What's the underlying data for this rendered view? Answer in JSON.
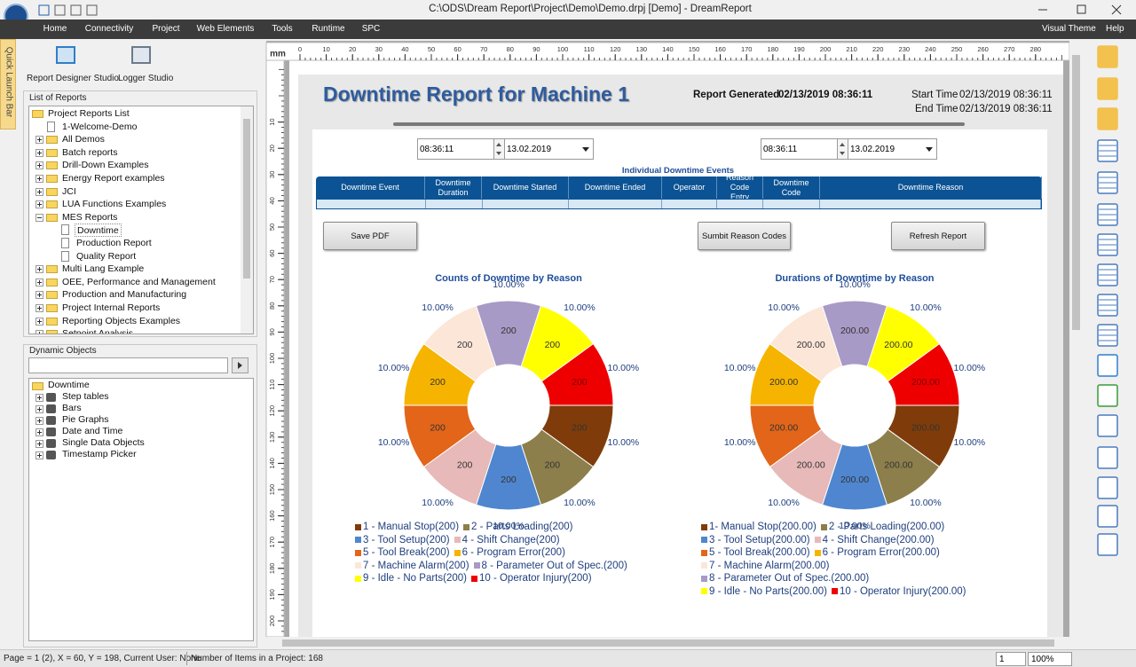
{
  "window": {
    "title": "C:\\ODS\\Dream Report\\Project\\Demo\\Demo.drpj [Demo]  - DreamReport"
  },
  "menu": {
    "items": [
      "Home",
      "Connectivity",
      "Project",
      "Web Elements",
      "Tools",
      "Runtime",
      "SPC"
    ],
    "visual_theme": "Visual Theme",
    "help": "Help"
  },
  "quick_launch": "Quick Launch Bar",
  "studios": [
    "Report Designer Studio",
    "Logger Studio"
  ],
  "reports_panel": {
    "title": "List of Reports",
    "tree": {
      "label": "Project Reports List",
      "children": [
        {
          "label": "1-Welcome-Demo"
        },
        {
          "label": "All Demos",
          "children": []
        },
        {
          "label": "Batch reports",
          "children": []
        },
        {
          "label": "Drill-Down Examples",
          "children": []
        },
        {
          "label": "Energy Report examples",
          "children": []
        },
        {
          "label": "JCI",
          "children": []
        },
        {
          "label": "LUA Functions Examples",
          "children": []
        },
        {
          "label": "MES Reports",
          "children": [
            {
              "label": "Downtime"
            },
            {
              "label": "Production Report"
            },
            {
              "label": "Quality Report"
            }
          ]
        },
        {
          "label": "Multi Lang Example",
          "children": []
        },
        {
          "label": "OEE, Performance and Management",
          "children": []
        },
        {
          "label": "Production and Manufacturing",
          "children": []
        },
        {
          "label": "Project Internal Reports",
          "children": []
        },
        {
          "label": "Reporting Objects Examples",
          "children": []
        },
        {
          "label": "Setpoint Analysis",
          "children": []
        }
      ]
    }
  },
  "dynamic_panel": {
    "title": "Dynamic Objects",
    "tree": {
      "label": "Downtime",
      "children": [
        {
          "label": "Step tables",
          "children": []
        },
        {
          "label": "Bars",
          "children": []
        },
        {
          "label": "Pie Graphs",
          "children": []
        },
        {
          "label": "Date and Time",
          "children": []
        },
        {
          "label": "Single Data Objects",
          "children": []
        },
        {
          "label": "Timestamp Picker",
          "children": []
        }
      ]
    }
  },
  "ruler": {
    "unit": "mm",
    "top": [
      0,
      10,
      20,
      30,
      40,
      50,
      60,
      70,
      80,
      90,
      100,
      110,
      120,
      130,
      140,
      150,
      160,
      170,
      180,
      190,
      200,
      210,
      220,
      230,
      240,
      250,
      260,
      270,
      280
    ],
    "left": [
      10,
      20,
      30,
      40,
      50,
      60,
      70,
      80,
      90,
      100,
      110,
      120,
      130,
      140,
      150,
      160,
      170,
      180,
      190,
      200
    ]
  },
  "report": {
    "title": "Downtime Report for Machine 1",
    "generated_label": "Report Generated",
    "generated": "02/13/2019 08:36:11",
    "start_label": "Start Time",
    "start": "02/13/2019 08:36:11",
    "end_label": "End Time",
    "end": "02/13/2019 08:36:11",
    "pickers": [
      {
        "time": "08:36:11",
        "date": "13.02.2019"
      },
      {
        "time": "08:36:11",
        "date": "13.02.2019"
      }
    ],
    "table": {
      "title": "Individual Downtime Events",
      "headers": [
        "Downtime Event",
        "Downtime Duration",
        "Downtime Started",
        "Downtime Ended",
        "Operator",
        "Reason Code Entry",
        "Downtime Code",
        "Downtime Reason"
      ]
    },
    "buttons": [
      "Save PDF",
      "Sumbit Reason Codes",
      "Refresh Report"
    ]
  },
  "chart_data": [
    {
      "type": "pie",
      "donut": true,
      "title": "Counts of Downtime by Reason",
      "categories": [
        "1 - Manual Stop(200)",
        "2 - Parts Loading(200)",
        "3 - Tool Setup(200)",
        "4 - Shift Change(200)",
        "5 - Tool Break(200)",
        "6 - Program Error(200)",
        "7 - Machine Alarm(200)",
        "8 - Parameter Out of Spec.(200)",
        "9 - Idle - No Parts(200)",
        "10 - Operator Injury(200)"
      ],
      "values": [
        200,
        200,
        200,
        200,
        200,
        200,
        200,
        200,
        200,
        200
      ],
      "percent_labels": [
        "10.00%",
        "10.00%",
        "10.00%",
        "10.00%",
        "10.00%",
        "10.00%",
        "10.00%",
        "10.00%",
        "10.00%",
        "10.00%"
      ],
      "colors": [
        "#7f3c0a",
        "#8c7f4c",
        "#4f86cf",
        "#e7b9b9",
        "#e2651a",
        "#f6b400",
        "#fce6d8",
        "#a89ac6",
        "#ffff00",
        "#ee0000"
      ]
    },
    {
      "type": "pie",
      "donut": true,
      "title": "Durations of Downtime by Reason",
      "categories": [
        "1- Manual Stop(200.00)",
        "2 - Parts Loading(200.00)",
        "3 - Tool Setup(200.00)",
        "4 - Shift Change(200.00)",
        "5 - Tool Break(200.00)",
        "6 - Program Error(200.00)",
        "7 - Machine Alarm(200.00)",
        "8 - Parameter Out of Spec.(200.00)",
        "9 - Idle - No Parts(200.00)",
        "10 - Operator Injury(200.00)"
      ],
      "values": [
        200,
        200,
        200,
        200,
        200,
        200,
        200,
        200,
        200,
        200
      ],
      "value_labels": [
        "200.00",
        "200.00",
        "200.00",
        "200.00",
        "200.00",
        "200.00",
        "200.00",
        "200.00",
        "200.00",
        "200.00"
      ],
      "percent_labels": [
        "10.00%",
        "10.00%",
        "10.00%",
        "10.00%",
        "10.00%",
        "10.00%",
        "10.00%",
        "10.00%",
        "10.00%",
        "10.00%"
      ],
      "colors": [
        "#7f3c0a",
        "#8c7f4c",
        "#4f86cf",
        "#e7b9b9",
        "#e2651a",
        "#f6b400",
        "#fce6d8",
        "#a89ac6",
        "#ffff00",
        "#ee0000"
      ]
    }
  ],
  "status": {
    "info": "Page =  1 (2), X =  60, Y = 198, Current User: None",
    "items": "Number of Items in a Project: 168",
    "page": "1",
    "zoom": "100%"
  }
}
